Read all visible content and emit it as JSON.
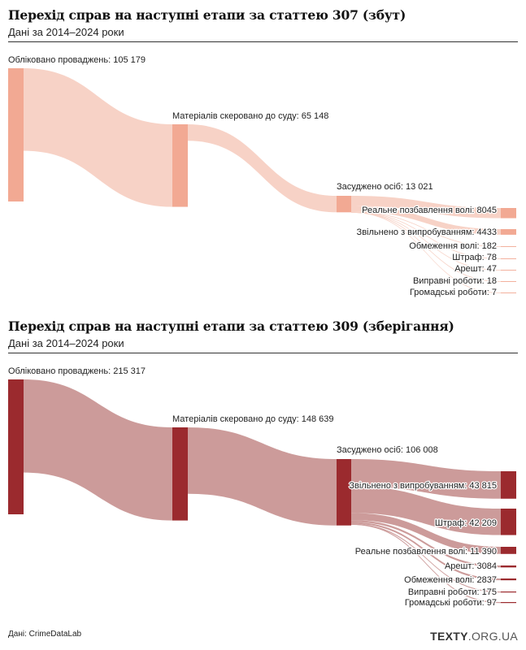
{
  "chart_data": [
    {
      "type": "sankey",
      "title": "Перехід справ на наступні етапи за статтею 307 (збут)",
      "subtitle": "Дані за 2014–2024 роки",
      "colors": {
        "node": "#f2a993",
        "link": "#f7d2c6"
      },
      "stages": [
        {
          "label": "Обліковано проваджень: 105 179",
          "value": 105179
        },
        {
          "label": "Матеріалів скеровано до суду: 65 148",
          "value": 65148
        },
        {
          "label": "Засуджено осіб: 13 021",
          "value": 13021
        }
      ],
      "outcomes": [
        {
          "label": "Реальне позбавлення волі: 8045",
          "value": 8045
        },
        {
          "label": "Звільнено з випробуванням: 4433",
          "value": 4433
        },
        {
          "label": "Обмеження волі: 182",
          "value": 182
        },
        {
          "label": "Штраф: 78",
          "value": 78
        },
        {
          "label": "Арешт: 47",
          "value": 47
        },
        {
          "label": "Виправні роботи: 18",
          "value": 18
        },
        {
          "label": "Громадські роботи: 7",
          "value": 7
        }
      ]
    },
    {
      "type": "sankey",
      "title": "Перехід справ на наступні етапи за статтею 309 (зберігання)",
      "subtitle": "Дані за 2014–2024 роки",
      "colors": {
        "node": "#9b2a2e",
        "link": "#cc9b9a"
      },
      "stages": [
        {
          "label": "Обліковано проваджень: 215 317",
          "value": 215317
        },
        {
          "label": "Матеріалів скеровано до суду: 148 639",
          "value": 148639
        },
        {
          "label": "Засуджено осіб: 106 008",
          "value": 106008
        }
      ],
      "outcomes": [
        {
          "label": "Звільнено з випробуванням: 43 815",
          "value": 43815
        },
        {
          "label": "Штраф: 42 209",
          "value": 42209
        },
        {
          "label": "Реальне позбавлення волі: 11 390",
          "value": 11390
        },
        {
          "label": "Арешт: 3084",
          "value": 3084
        },
        {
          "label": "Обмеження волі: 2837",
          "value": 2837
        },
        {
          "label": "Виправні роботи: 175",
          "value": 175
        },
        {
          "label": "Громадські роботи: 97",
          "value": 97
        }
      ]
    }
  ],
  "footer": {
    "source": "Дані: CrimeDataLab",
    "brand_name": "TEXTY",
    "brand_domain": ".ORG.UA"
  }
}
